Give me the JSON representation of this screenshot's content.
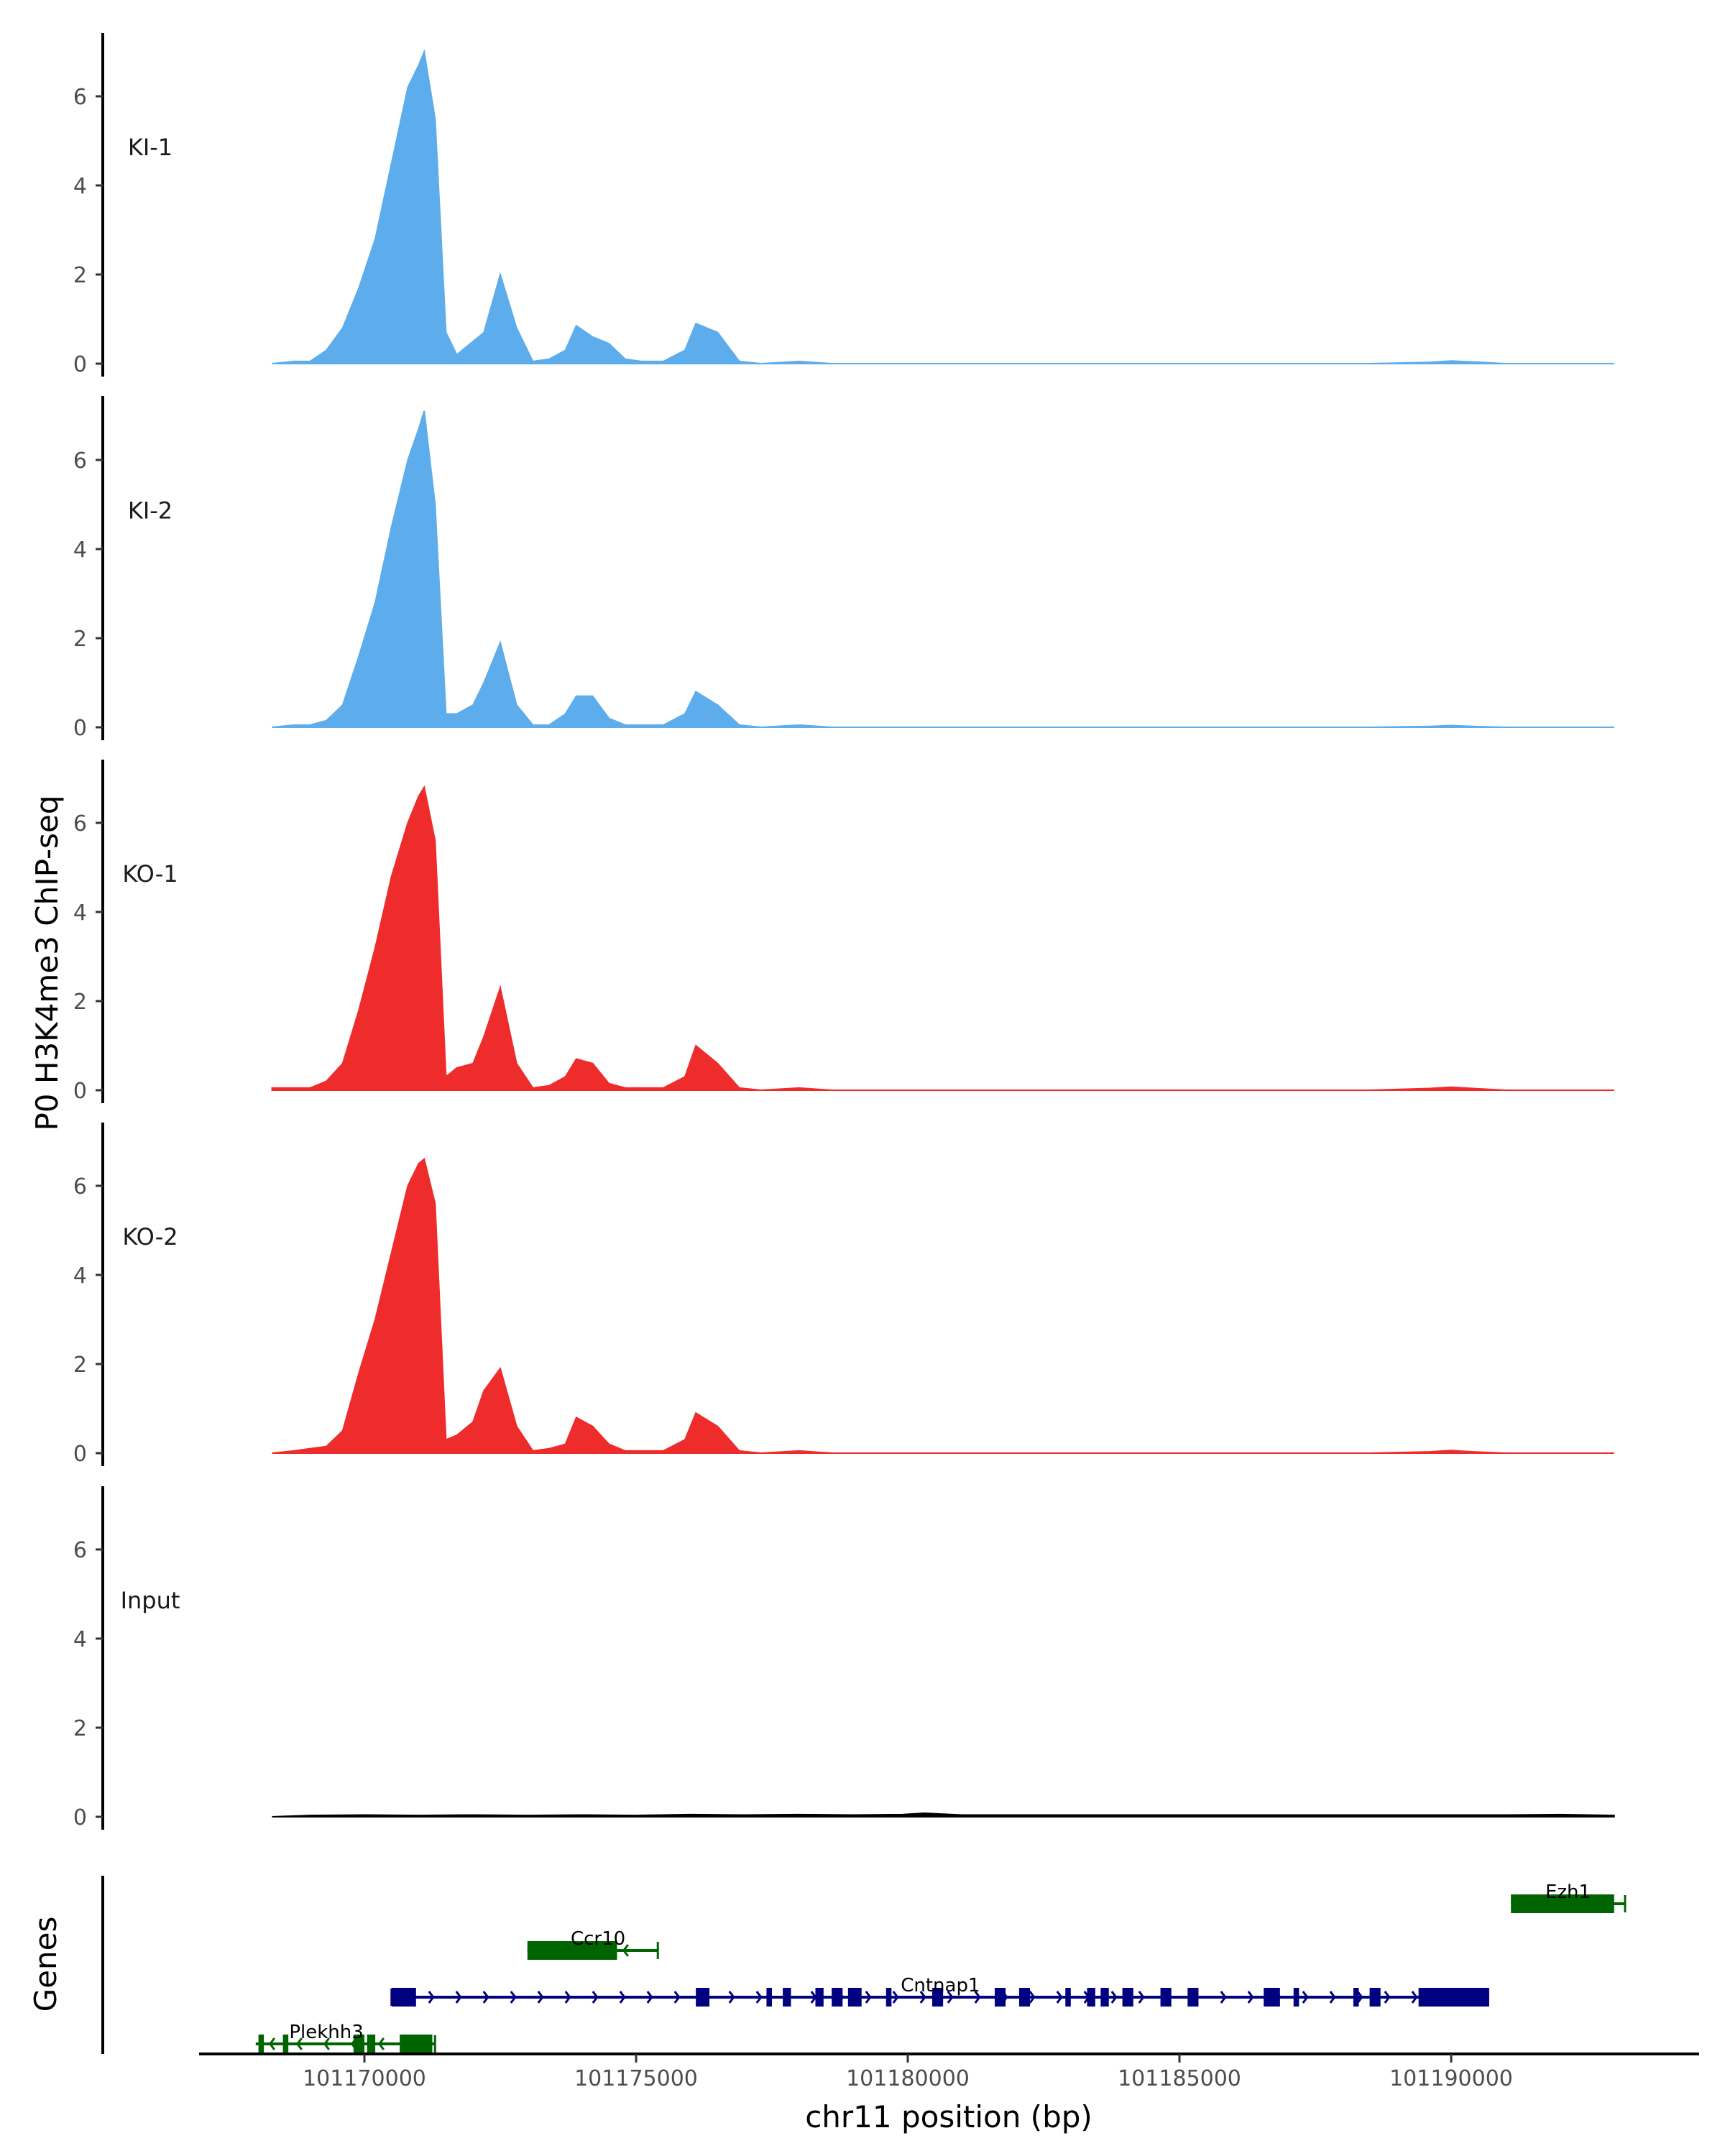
{
  "chart_data": {
    "type": "area",
    "title": "",
    "xlabel": "chr11 position (bp)",
    "ylabel": "P0 H3K4me3 ChIP-seq",
    "gene_track_label": "Genes",
    "x_range": [
      101166500,
      101194000
    ],
    "x_ticks": [
      101170000,
      101175000,
      101180000,
      101185000,
      101190000
    ],
    "y_range": [
      0,
      7.5
    ],
    "y_ticks": [
      0,
      2,
      4,
      6
    ],
    "grid": false,
    "colors": {
      "KI": "#5DADEC",
      "KO": "#EE2C2C",
      "Input": "#000000"
    },
    "tracks": [
      {
        "name": "KI-1",
        "color": "#5DADEC",
        "x": [
          101168300,
          101168700,
          101169000,
          101169300,
          101169600,
          101169900,
          101170200,
          101170500,
          101170800,
          101171000,
          101171100,
          101171300,
          101171500,
          101171700,
          101172000,
          101172200,
          101172500,
          101172800,
          101173100,
          101173400,
          101173700,
          101173900,
          101174200,
          101174500,
          101174800,
          101175100,
          101175500,
          101175900,
          101176100,
          101176500,
          101176900,
          101177300,
          101178000,
          101178600,
          101179500,
          101181000,
          101183000,
          101186000,
          101188500,
          101189600,
          101190000,
          101190400,
          101191000,
          101193000
        ],
        "y": [
          0,
          0.05,
          0.05,
          0.3,
          0.8,
          1.7,
          2.8,
          4.5,
          6.2,
          6.7,
          7.0,
          5.5,
          0.7,
          0.2,
          0.5,
          0.7,
          2.0,
          0.8,
          0.05,
          0.1,
          0.3,
          0.85,
          0.6,
          0.45,
          0.1,
          0.05,
          0.05,
          0.3,
          0.9,
          0.7,
          0.05,
          0,
          0.05,
          0,
          0,
          0,
          0,
          0,
          0,
          0.03,
          0.06,
          0.04,
          0,
          0
        ]
      },
      {
        "name": "KI-2",
        "color": "#5DADEC",
        "x": [
          101168300,
          101168700,
          101169000,
          101169300,
          101169600,
          101169900,
          101170200,
          101170500,
          101170800,
          101171000,
          101171100,
          101171300,
          101171500,
          101171700,
          101172000,
          101172200,
          101172500,
          101172800,
          101173100,
          101173400,
          101173700,
          101173900,
          101174200,
          101174500,
          101174800,
          101175100,
          101175500,
          101175900,
          101176100,
          101176500,
          101176900,
          101177300,
          101178000,
          101178600,
          101179500,
          101181000,
          101183000,
          101186000,
          101188500,
          101189600,
          101190000,
          101190400,
          101191000,
          101193000
        ],
        "y": [
          0,
          0.05,
          0.05,
          0.15,
          0.5,
          1.6,
          2.8,
          4.5,
          6.0,
          6.7,
          7.1,
          5.0,
          0.3,
          0.3,
          0.5,
          1.0,
          1.9,
          0.5,
          0.05,
          0.05,
          0.3,
          0.7,
          0.7,
          0.2,
          0.05,
          0.05,
          0.05,
          0.3,
          0.8,
          0.5,
          0.05,
          0,
          0.05,
          0,
          0,
          0,
          0,
          0,
          0,
          0.02,
          0.04,
          0.02,
          0,
          0
        ]
      },
      {
        "name": "KO-1",
        "color": "#EE2C2C",
        "x": [
          101168300,
          101168700,
          101169000,
          101169300,
          101169600,
          101169900,
          101170200,
          101170500,
          101170800,
          101171000,
          101171100,
          101171300,
          101171500,
          101171700,
          101172000,
          101172200,
          101172500,
          101172800,
          101173100,
          101173400,
          101173700,
          101173900,
          101174200,
          101174500,
          101174800,
          101175100,
          101175500,
          101175900,
          101176100,
          101176500,
          101176900,
          101177300,
          101178000,
          101178600,
          101179500,
          101181000,
          101183000,
          101186000,
          101188500,
          101189600,
          101190000,
          101190400,
          101191000,
          101193000
        ],
        "y": [
          0.05,
          0.05,
          0.05,
          0.2,
          0.6,
          1.8,
          3.2,
          4.8,
          6.0,
          6.6,
          6.8,
          5.6,
          0.3,
          0.5,
          0.6,
          1.2,
          2.3,
          0.6,
          0.05,
          0.1,
          0.3,
          0.7,
          0.6,
          0.15,
          0.05,
          0.05,
          0.05,
          0.3,
          1.0,
          0.6,
          0.05,
          0,
          0.05,
          0,
          0,
          0,
          0,
          0,
          0,
          0.04,
          0.07,
          0.04,
          0,
          0
        ]
      },
      {
        "name": "KO-2",
        "color": "#EE2C2C",
        "x": [
          101168300,
          101168700,
          101169000,
          101169300,
          101169600,
          101169900,
          101170200,
          101170500,
          101170800,
          101171000,
          101171100,
          101171300,
          101171500,
          101171700,
          101172000,
          101172200,
          101172500,
          101172800,
          101173100,
          101173400,
          101173700,
          101173900,
          101174200,
          101174500,
          101174800,
          101175100,
          101175500,
          101175900,
          101176100,
          101176500,
          101176900,
          101177300,
          101178000,
          101178600,
          101179500,
          101181000,
          101183000,
          101186000,
          101188500,
          101189600,
          101190000,
          101190400,
          101191000,
          101193000
        ],
        "y": [
          0,
          0.05,
          0.1,
          0.15,
          0.5,
          1.8,
          3.0,
          4.5,
          6.0,
          6.5,
          6.6,
          5.6,
          0.3,
          0.4,
          0.7,
          1.4,
          1.9,
          0.6,
          0.05,
          0.1,
          0.2,
          0.8,
          0.6,
          0.2,
          0.05,
          0.05,
          0.05,
          0.3,
          0.9,
          0.6,
          0.05,
          0,
          0.05,
          0,
          0,
          0,
          0,
          0,
          0,
          0.03,
          0.06,
          0.03,
          0,
          0
        ]
      },
      {
        "name": "Input",
        "color": "#000000",
        "x": [
          101168300,
          101169000,
          101170000,
          101171000,
          101172000,
          101173000,
          101174000,
          101175000,
          101176000,
          101177000,
          101178000,
          101179000,
          101179900,
          101180300,
          101181000,
          101182000,
          101183000,
          101184000,
          101185000,
          101186000,
          101187000,
          101188000,
          101189000,
          101190000,
          101191000,
          101192000,
          101193000
        ],
        "y": [
          0,
          0.03,
          0.04,
          0.03,
          0.04,
          0.03,
          0.04,
          0.03,
          0.05,
          0.04,
          0.05,
          0.04,
          0.05,
          0.08,
          0.04,
          0.04,
          0.04,
          0.04,
          0.04,
          0.04,
          0.04,
          0.04,
          0.04,
          0.04,
          0.04,
          0.05,
          0.03
        ]
      }
    ],
    "genes": [
      {
        "name": "Ezh1",
        "strand": "-",
        "color": "#006400",
        "row": 1,
        "start": 101191100,
        "end": 101193200,
        "exons": [
          [
            101191100,
            101193000
          ]
        ]
      },
      {
        "name": "Ccr10",
        "strand": "-",
        "color": "#006400",
        "row": 2,
        "start": 101173000,
        "end": 101175400,
        "exons": [
          [
            101173000,
            101174650
          ]
        ]
      },
      {
        "name": "Cntnap1",
        "strand": "+",
        "color": "#000080",
        "row": 3,
        "start": 101170500,
        "end": 101190700,
        "exons": [
          [
            101170500,
            101170950
          ],
          [
            101176100,
            101176350
          ],
          [
            101177400,
            101177500
          ],
          [
            101177700,
            101177850
          ],
          [
            101178300,
            101178450
          ],
          [
            101178600,
            101178800
          ],
          [
            101178900,
            101179150
          ],
          [
            101179600,
            101179700
          ],
          [
            101180450,
            101180650
          ],
          [
            101181600,
            101181800
          ],
          [
            101182050,
            101182250
          ],
          [
            101182900,
            101183000
          ],
          [
            101183300,
            101183450
          ],
          [
            101183550,
            101183700
          ],
          [
            101183950,
            101184150
          ],
          [
            101184650,
            101184850
          ],
          [
            101185150,
            101185350
          ],
          [
            101186550,
            101186850
          ],
          [
            101187100,
            101187200
          ],
          [
            101188200,
            101188300
          ],
          [
            101188500,
            101188700
          ],
          [
            101189400,
            101190700
          ]
        ]
      },
      {
        "name": "Plekhh3",
        "strand": "-",
        "color": "#006400",
        "row": 4,
        "start": 101168000,
        "end": 101171300,
        "exons": [
          [
            101168050,
            101168150
          ],
          [
            101168500,
            101168600
          ],
          [
            101169800,
            101170000
          ],
          [
            101170050,
            101170200
          ],
          [
            101170650,
            101171250
          ]
        ]
      }
    ]
  }
}
